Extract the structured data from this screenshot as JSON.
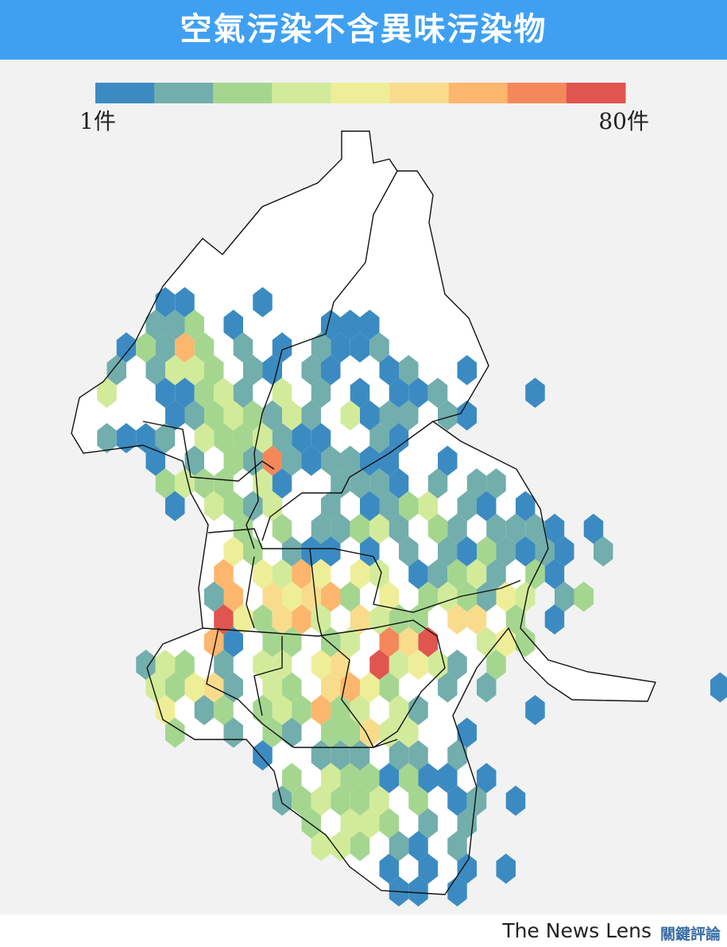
{
  "header": {
    "title": "空氣污染不含異味污染物"
  },
  "legend": {
    "colors": [
      "#3b8bc2",
      "#72aeac",
      "#a5d68f",
      "#d2eb9a",
      "#efee98",
      "#f8dc8c",
      "#fdb66d",
      "#f5885a",
      "#e0554f"
    ],
    "min_label": "1件",
    "max_label": "80件"
  },
  "footer": {
    "brand": "The News Lens",
    "brand_zh": "關鍵評論"
  }
}
